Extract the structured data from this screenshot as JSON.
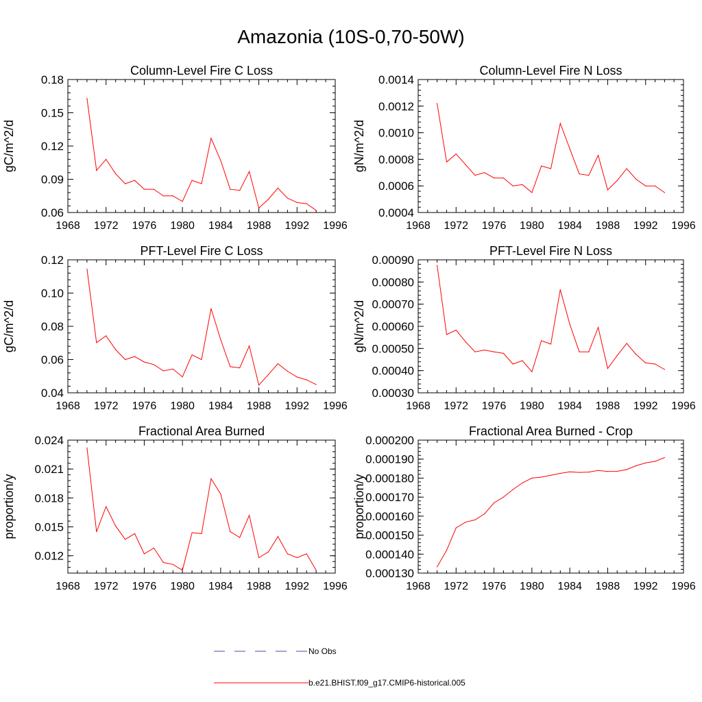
{
  "figure": {
    "title": "Amazonia (10S-0,70-50W)",
    "colors": {
      "model": "#ff0000",
      "obs": "#4a4aa8",
      "frame": "#000000"
    }
  },
  "legend": {
    "items": [
      {
        "label": "No Obs",
        "style": "dashed",
        "color": "#4a4aa8"
      },
      {
        "label": "b.e21.BHIST.f09_g17.CMIP6-historical.005",
        "style": "solid",
        "color": "#ff0000"
      }
    ]
  },
  "chart_data": [
    {
      "type": "line",
      "title": "Column-Level Fire C Loss",
      "ylabel": "gC/m^2/d",
      "xlim": [
        1968,
        1996
      ],
      "xticks": [
        "1968",
        "1972",
        "1976",
        "1980",
        "1984",
        "1988",
        "1992",
        "1996"
      ],
      "ylim": [
        0.06,
        0.18
      ],
      "yticks": [
        "0.06",
        "0.09",
        "0.12",
        "0.15",
        "0.18"
      ],
      "series": [
        {
          "x": [
            1970,
            1971,
            1972,
            1973,
            1974,
            1975,
            1976,
            1977,
            1978,
            1979,
            1980,
            1981,
            1982,
            1983,
            1984,
            1985,
            1986,
            1987,
            1988,
            1989,
            1990,
            1991,
            1992,
            1993,
            1994
          ],
          "values": [
            0.163,
            0.098,
            0.108,
            0.095,
            0.086,
            0.089,
            0.081,
            0.081,
            0.075,
            0.075,
            0.07,
            0.089,
            0.086,
            0.127,
            0.107,
            0.081,
            0.08,
            0.097,
            0.064,
            0.072,
            0.082,
            0.073,
            0.069,
            0.068,
            0.062
          ]
        }
      ]
    },
    {
      "type": "line",
      "title": "Column-Level Fire N Loss",
      "ylabel": "gN/m^2/d",
      "xlim": [
        1968,
        1996
      ],
      "xticks": [
        "1968",
        "1972",
        "1976",
        "1980",
        "1984",
        "1988",
        "1992",
        "1996"
      ],
      "ylim": [
        0.0004,
        0.0014
      ],
      "yticks": [
        "0.0004",
        "0.0006",
        "0.0008",
        "0.0010",
        "0.0012",
        "0.0014"
      ],
      "series": [
        {
          "x": [
            1970,
            1971,
            1972,
            1973,
            1974,
            1975,
            1976,
            1977,
            1978,
            1979,
            1980,
            1981,
            1982,
            1983,
            1984,
            1985,
            1986,
            1987,
            1988,
            1989,
            1990,
            1991,
            1992,
            1993,
            1994
          ],
          "values": [
            0.00122,
            0.00078,
            0.00084,
            0.00076,
            0.00068,
            0.0007,
            0.00066,
            0.00066,
            0.0006,
            0.00061,
            0.00055,
            0.00075,
            0.00073,
            0.00107,
            0.00088,
            0.00069,
            0.00068,
            0.00083,
            0.00057,
            0.00064,
            0.00073,
            0.00065,
            0.0006,
            0.0006,
            0.00055
          ]
        }
      ]
    },
    {
      "type": "line",
      "title": "PFT-Level Fire C Loss",
      "ylabel": "gC/m^2/d",
      "xlim": [
        1968,
        1996
      ],
      "xticks": [
        "1968",
        "1972",
        "1976",
        "1980",
        "1984",
        "1988",
        "1992",
        "1996"
      ],
      "ylim": [
        0.04,
        0.12
      ],
      "yticks": [
        "0.04",
        "0.06",
        "0.08",
        "0.10",
        "0.12"
      ],
      "series": [
        {
          "x": [
            1970,
            1971,
            1972,
            1973,
            1974,
            1975,
            1976,
            1977,
            1978,
            1979,
            1980,
            1981,
            1982,
            1983,
            1984,
            1985,
            1986,
            1987,
            1988,
            1989,
            1990,
            1991,
            1992,
            1993,
            1994
          ],
          "values": [
            0.1145,
            0.0702,
            0.0743,
            0.066,
            0.06,
            0.0618,
            0.0585,
            0.057,
            0.0532,
            0.0543,
            0.0496,
            0.0628,
            0.06,
            0.0907,
            0.072,
            0.0557,
            0.055,
            0.0682,
            0.0446,
            0.051,
            0.0575,
            0.053,
            0.0495,
            0.0478,
            0.045
          ]
        }
      ]
    },
    {
      "type": "line",
      "title": "PFT-Level Fire N Loss",
      "ylabel": "gN/m^2/d",
      "xlim": [
        1968,
        1996
      ],
      "xticks": [
        "1968",
        "1972",
        "1976",
        "1980",
        "1984",
        "1988",
        "1992",
        "1996"
      ],
      "ylim": [
        0.0003,
        0.0009
      ],
      "yticks": [
        "0.00030",
        "0.00040",
        "0.00050",
        "0.00060",
        "0.00070",
        "0.00080",
        "0.00090"
      ],
      "series": [
        {
          "x": [
            1970,
            1971,
            1972,
            1973,
            1974,
            1975,
            1976,
            1977,
            1978,
            1979,
            1980,
            1981,
            1982,
            1983,
            1984,
            1985,
            1986,
            1987,
            1988,
            1989,
            1990,
            1991,
            1992,
            1993,
            1994
          ],
          "values": [
            0.000875,
            0.000563,
            0.000583,
            0.00053,
            0.000485,
            0.000493,
            0.000485,
            0.000478,
            0.00043,
            0.000445,
            0.000395,
            0.000535,
            0.00052,
            0.000765,
            0.00061,
            0.000485,
            0.000485,
            0.000595,
            0.00041,
            0.000468,
            0.000523,
            0.000473,
            0.000435,
            0.00043,
            0.000405
          ]
        }
      ]
    },
    {
      "type": "line",
      "title": "Fractional Area Burned",
      "ylabel": "proportion/y",
      "xlim": [
        1968,
        1996
      ],
      "xticks": [
        "1968",
        "1972",
        "1976",
        "1980",
        "1984",
        "1988",
        "1992",
        "1996"
      ],
      "ylim": [
        0.0102,
        0.024
      ],
      "yticks": [
        "0.012",
        "0.015",
        "0.018",
        "0.021",
        "0.024"
      ],
      "series": [
        {
          "x": [
            1970,
            1971,
            1972,
            1973,
            1974,
            1975,
            1976,
            1977,
            1978,
            1979,
            1980,
            1981,
            1982,
            1983,
            1984,
            1985,
            1986,
            1987,
            1988,
            1989,
            1990,
            1991,
            1992,
            1993,
            1994
          ],
          "values": [
            0.0232,
            0.0145,
            0.0171,
            0.0151,
            0.0137,
            0.0143,
            0.0122,
            0.0128,
            0.0113,
            0.0111,
            0.0105,
            0.0144,
            0.0143,
            0.02,
            0.0184,
            0.0145,
            0.0139,
            0.0162,
            0.0118,
            0.0124,
            0.014,
            0.0122,
            0.0118,
            0.0122,
            0.0105
          ]
        }
      ]
    },
    {
      "type": "line",
      "title": "Fractional Area Burned - Crop",
      "ylabel": "proportion/y",
      "xlim": [
        1968,
        1996
      ],
      "xticks": [
        "1968",
        "1972",
        "1976",
        "1980",
        "1984",
        "1988",
        "1992",
        "1996"
      ],
      "ylim": [
        0.00013,
        0.0002
      ],
      "yticks": [
        "0.000130",
        "0.000140",
        "0.000150",
        "0.000160",
        "0.000170",
        "0.000180",
        "0.000190",
        "0.000200"
      ],
      "series": [
        {
          "x": [
            1970,
            1971,
            1972,
            1973,
            1974,
            1975,
            1976,
            1977,
            1978,
            1979,
            1980,
            1981,
            1982,
            1983,
            1984,
            1985,
            1986,
            1987,
            1988,
            1989,
            1990,
            1991,
            1992,
            1993,
            1994
          ],
          "values": [
            0.0001333,
            0.000142,
            0.0001538,
            0.0001568,
            0.000158,
            0.0001612,
            0.000167,
            0.00017,
            0.000174,
            0.0001775,
            0.00018,
            0.0001805,
            0.0001815,
            0.0001825,
            0.0001833,
            0.000183,
            0.0001832,
            0.000184,
            0.0001835,
            0.0001836,
            0.0001845,
            0.0001865,
            0.000188,
            0.0001888,
            0.0001908
          ]
        }
      ]
    }
  ]
}
